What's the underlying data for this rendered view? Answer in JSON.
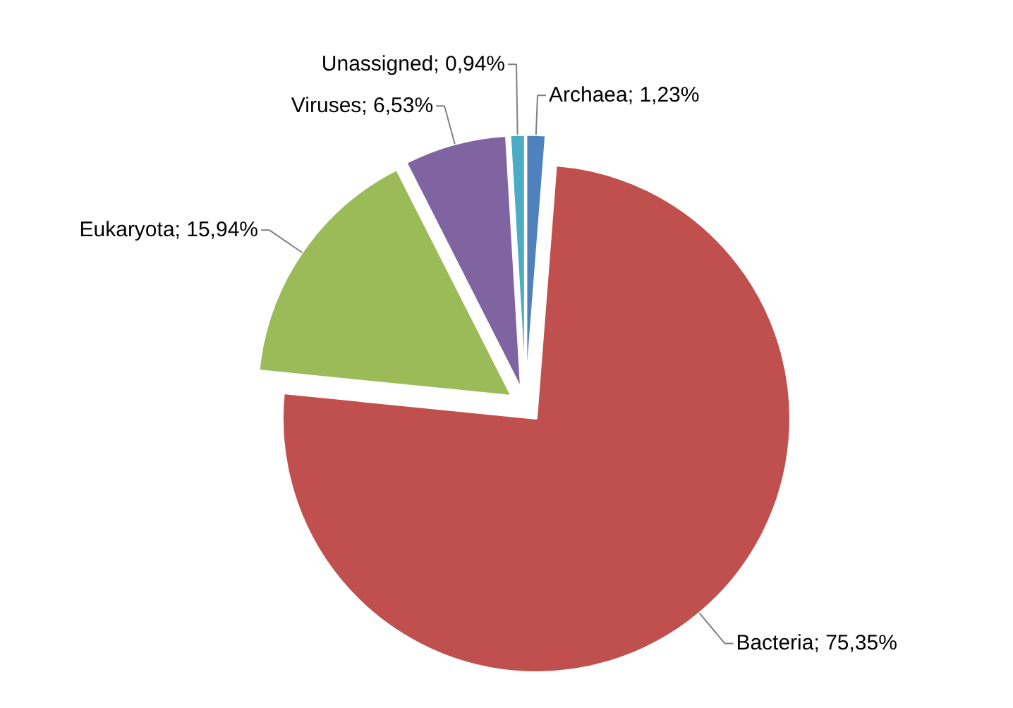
{
  "chart_data": {
    "type": "pie",
    "categories": [
      "Archaea",
      "Bacteria",
      "Eukaryota",
      "Viruses",
      "Unassigned"
    ],
    "values": [
      1.23,
      75.35,
      15.94,
      6.53,
      0.94
    ],
    "value_labels": [
      "1,23%",
      "75,35%",
      "15,94%",
      "6,53%",
      "0,94%"
    ],
    "colors": [
      "#4f81bd",
      "#c0504d",
      "#9bbb59",
      "#8064a2",
      "#4bacc6"
    ]
  }
}
